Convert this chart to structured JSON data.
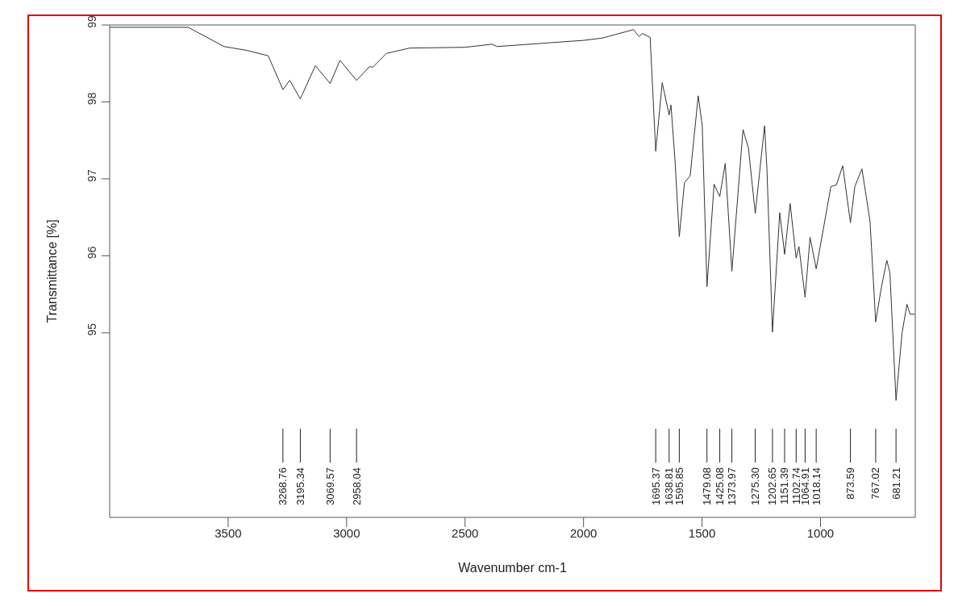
{
  "chart_data": {
    "type": "line",
    "xlabel": "Wavenumber cm-1",
    "ylabel": "Transmittance [%]",
    "x": [
      4000,
      3669,
      3517,
      3422,
      3331,
      3268.76,
      3240,
      3195.34,
      3132,
      3069.57,
      3028,
      2958.04,
      2903,
      2890,
      2832,
      2734,
      2500,
      2387,
      2365,
      2000,
      1921,
      1789,
      1766,
      1752,
      1719,
      1695.37,
      1668,
      1638.81,
      1631,
      1614,
      1595.85,
      1574,
      1550,
      1516,
      1499,
      1479.08,
      1449,
      1425.08,
      1402,
      1373.97,
      1327,
      1304,
      1275.3,
      1236,
      1226,
      1202.65,
      1172,
      1151.39,
      1128,
      1102.74,
      1091,
      1064.91,
      1044,
      1018.14,
      956,
      933,
      906,
      873.59,
      855,
      825,
      791,
      767.02,
      743,
      720,
      707,
      681.21,
      656,
      635,
      622,
      602
    ],
    "series": [
      {
        "color": "#333333",
        "values": [
          98.97,
          98.97,
          98.72,
          98.67,
          98.6,
          98.16,
          98.28,
          98.04,
          98.47,
          98.24,
          98.54,
          98.28,
          98.46,
          98.45,
          98.63,
          98.7,
          98.71,
          98.75,
          98.72,
          98.8,
          98.83,
          98.94,
          98.85,
          98.89,
          98.84,
          97.36,
          98.25,
          97.83,
          97.96,
          97.24,
          96.25,
          96.95,
          97.04,
          98.08,
          97.69,
          95.6,
          96.93,
          96.77,
          97.2,
          95.8,
          97.64,
          97.4,
          96.55,
          97.69,
          97.13,
          95.01,
          96.56,
          96.02,
          96.68,
          95.97,
          96.12,
          95.46,
          96.24,
          95.83,
          96.9,
          96.92,
          97.17,
          96.43,
          96.9,
          97.13,
          96.45,
          95.14,
          95.59,
          95.94,
          95.78,
          94.12,
          94.99,
          95.37,
          95.24,
          95.24
        ]
      }
    ],
    "xlim": [
      4000,
      600
    ],
    "xticks": [
      3500,
      3000,
      2500,
      2000,
      1500,
      1000
    ],
    "ylim": [
      92.6,
      99
    ],
    "yticks": [
      95,
      96,
      97,
      98,
      99
    ],
    "marker": "none",
    "line_style": "solid",
    "grid": false,
    "legend": false,
    "annotations": [
      {
        "text": "3268.76",
        "x": 3268.76
      },
      {
        "text": "3195.34",
        "x": 3195.34
      },
      {
        "text": "3069.57",
        "x": 3069.57
      },
      {
        "text": "2958.04",
        "x": 2958.04
      },
      {
        "text": "1695.37",
        "x": 1695.37
      },
      {
        "text": "1638.81",
        "x": 1638.81
      },
      {
        "text": "1595.85",
        "x": 1595.85
      },
      {
        "text": "1479.08",
        "x": 1479.08
      },
      {
        "text": "1425.08",
        "x": 1425.08
      },
      {
        "text": "1373.97",
        "x": 1373.97
      },
      {
        "text": "1275.30",
        "x": 1275.3
      },
      {
        "text": "1202.65",
        "x": 1202.65
      },
      {
        "text": "1151.39",
        "x": 1151.39
      },
      {
        "text": "1102.74",
        "x": 1102.74
      },
      {
        "text": "1064.91",
        "x": 1064.91
      },
      {
        "text": "1018.14",
        "x": 1018.14
      },
      {
        "text": "873.59",
        "x": 873.59
      },
      {
        "text": "767.02",
        "x": 767.02
      },
      {
        "text": "681.21",
        "x": 681.21
      }
    ]
  }
}
